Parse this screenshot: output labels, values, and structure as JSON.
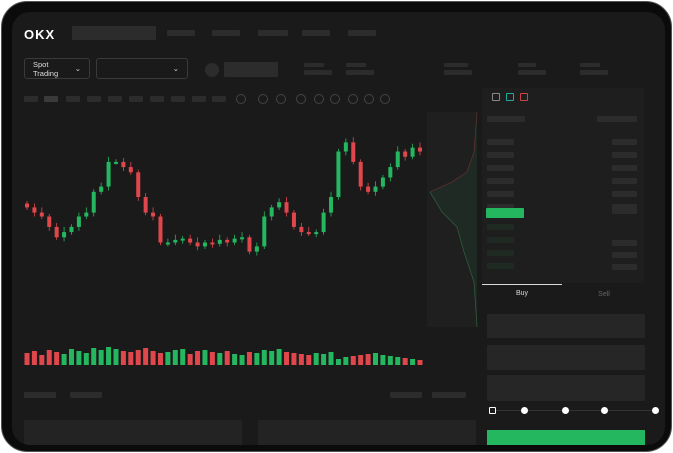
{
  "header": {
    "logo": "OKX"
  },
  "controls": {
    "market_select": "Spot Trading",
    "pair_select": ""
  },
  "trade": {
    "tabs": [
      "Buy",
      "Sell"
    ],
    "active_tab": "Buy",
    "slider_percent": 0
  },
  "colors": {
    "up": "#25b760",
    "down": "#e0474c",
    "bg": "#1a1a1a"
  },
  "chart_data": {
    "type": "candlestick",
    "closes": [
      42,
      38,
      35,
      27,
      19,
      23,
      27,
      35,
      38,
      54,
      58,
      77,
      77,
      73,
      69,
      50,
      38,
      35,
      15,
      15,
      17,
      18,
      15,
      12,
      15,
      14,
      17,
      15,
      18,
      19,
      8,
      12,
      35,
      42,
      46,
      38,
      27,
      23,
      22,
      23,
      38,
      50,
      85,
      92,
      77,
      58,
      54,
      58,
      65,
      73,
      85,
      81,
      88,
      85
    ],
    "volumes": [
      12,
      14,
      10,
      15,
      13,
      11,
      16,
      14,
      12,
      17,
      15,
      18,
      16,
      14,
      13,
      15,
      17,
      14,
      12,
      13,
      15,
      16,
      11,
      14,
      15,
      13,
      12,
      14,
      11,
      10,
      13,
      12,
      15,
      14,
      16,
      13,
      12,
      11,
      10,
      12,
      11,
      13,
      6,
      8,
      9,
      10,
      11,
      12,
      10,
      9,
      8,
      7,
      6,
      5
    ]
  }
}
